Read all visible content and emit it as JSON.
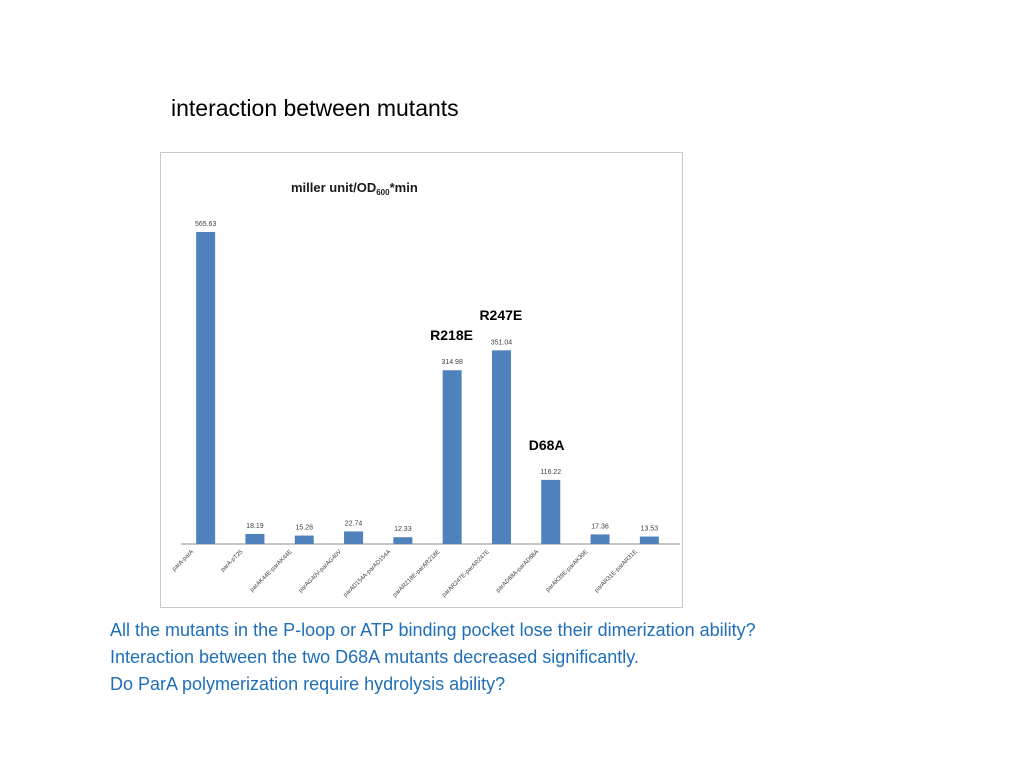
{
  "slide": {
    "title": "interaction between mutants",
    "notes": [
      "All the mutants in the P-loop or ATP binding pocket lose their dimerization ability?",
      "Interaction between the two D68A mutants decreased significantly.",
      "Do ParA polymerization require hydrolysis ability?"
    ]
  },
  "chart_data": {
    "type": "bar",
    "title_main": "miller unit/OD",
    "title_sub": "600",
    "title_suffix": "*min",
    "categories": [
      "parA-parA",
      "parA-pT25",
      "parAK44E-parAK44E",
      "parAG40V-parAG40V",
      "parAD154A-parAD154A",
      "parAR218E-parAR218E",
      "parAR247E-parAR247E",
      "parAD68A-parAD68A",
      "parAK39E-parAK39E",
      "parAR31E-parAR31E"
    ],
    "values": [
      565.63,
      18.19,
      15.28,
      22.74,
      12.33,
      314.98,
      351.04,
      116.22,
      17.36,
      13.53
    ],
    "data_labels": [
      "565.63",
      "18.19",
      "15.28",
      "22.74",
      "12.33",
      "314.98",
      "351.04",
      "116.22",
      "17.36",
      "13.53"
    ],
    "ylim": [
      0,
      600
    ],
    "bar_color": "#4f81bd",
    "grid": false,
    "legend": "none",
    "annotations": [
      {
        "label": "R218E",
        "category_index": 5
      },
      {
        "label": "R247E",
        "category_index": 6
      },
      {
        "label": "D68A",
        "category_index": 7
      }
    ]
  }
}
